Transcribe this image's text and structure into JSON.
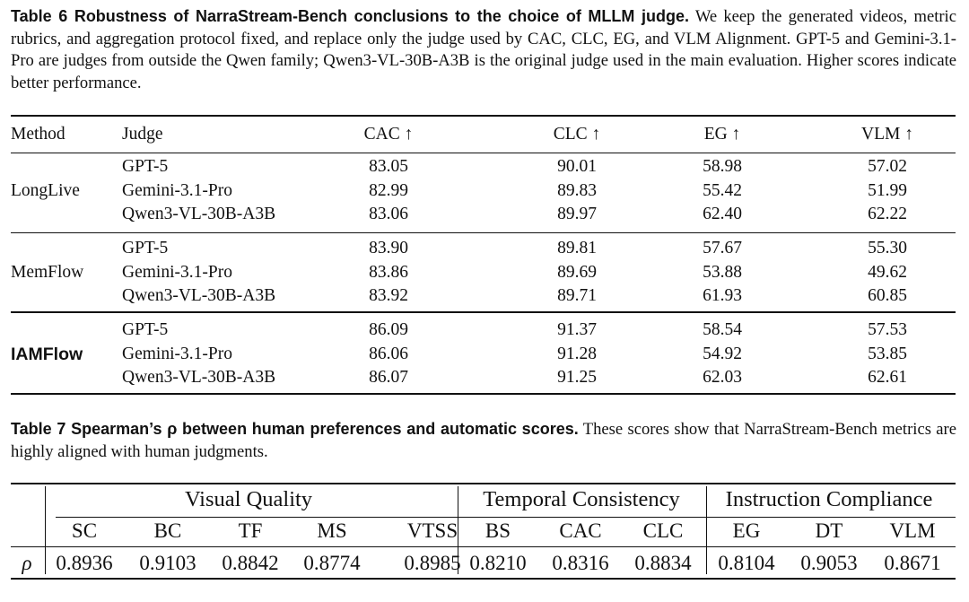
{
  "table6": {
    "caption_lead": "Table 6  Robustness of NarraStream-Bench conclusions to the choice of MLLM judge.",
    "caption_body": " We keep the generated videos, metric rubrics, and aggregation protocol fixed, and replace only the judge used by CAC, CLC, EG, and VLM Alignment. GPT-5 and Gemini-3.1-Pro are judges from outside the Qwen family; Qwen3-VL-30B-A3B is the original judge used in the main evaluation. Higher scores indicate better performance.",
    "headers": [
      "Method",
      "Judge",
      "CAC ↑",
      "CLC ↑",
      "EG ↑",
      "VLM ↑"
    ],
    "groups": [
      {
        "method": "LongLive",
        "rows": [
          {
            "judge": "GPT-5",
            "vals": [
              "83.05",
              "90.01",
              "58.98",
              "57.02"
            ]
          },
          {
            "judge": "Gemini-3.1-Pro",
            "vals": [
              "82.99",
              "89.83",
              "55.42",
              "51.99"
            ]
          },
          {
            "judge": "Qwen3-VL-30B-A3B",
            "vals": [
              "83.06",
              "89.97",
              "62.40",
              "62.22"
            ]
          }
        ]
      },
      {
        "method": "MemFlow",
        "rows": [
          {
            "judge": "GPT-5",
            "vals": [
              "83.90",
              "89.81",
              "57.67",
              "55.30"
            ]
          },
          {
            "judge": "Gemini-3.1-Pro",
            "vals": [
              "83.86",
              "89.69",
              "53.88",
              "49.62"
            ]
          },
          {
            "judge": "Qwen3-VL-30B-A3B",
            "vals": [
              "83.92",
              "89.71",
              "61.93",
              "60.85"
            ]
          }
        ]
      },
      {
        "method": "IAMFlow",
        "rows": [
          {
            "judge": "GPT-5",
            "vals": [
              "86.09",
              "91.37",
              "58.54",
              "57.53"
            ]
          },
          {
            "judge": "Gemini-3.1-Pro",
            "vals": [
              "86.06",
              "91.28",
              "54.92",
              "53.85"
            ]
          },
          {
            "judge": "Qwen3-VL-30B-A3B",
            "vals": [
              "86.07",
              "91.25",
              "62.03",
              "62.61"
            ]
          }
        ]
      }
    ]
  },
  "table7": {
    "caption_lead": "Table 7  Spearman’s ρ between human preferences and automatic scores.",
    "caption_body": " These scores show that NarraStream-Bench metrics are highly aligned with human judgments.",
    "groups": [
      "Visual Quality",
      "Temporal Consistency",
      "Instruction Compliance"
    ],
    "metrics": [
      "SC",
      "BC",
      "TF",
      "MS",
      "VTSS",
      "BS",
      "CAC",
      "CLC",
      "EG",
      "DT",
      "VLM"
    ],
    "row_label": "ρ",
    "values": [
      "0.8936",
      "0.9103",
      "0.8842",
      "0.8774",
      "0.8985",
      "0.8210",
      "0.8316",
      "0.8834",
      "0.8104",
      "0.9053",
      "0.8671"
    ]
  }
}
